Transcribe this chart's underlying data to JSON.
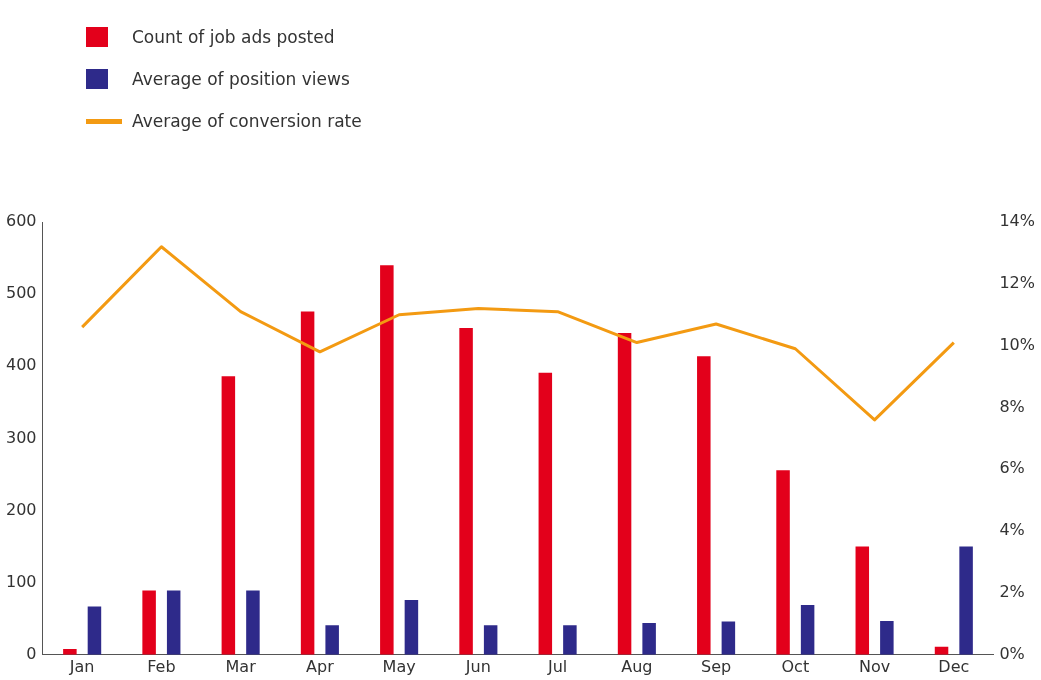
{
  "chart_data": {
    "type": "bar",
    "categories": [
      "Jan",
      "Feb",
      "Mar",
      "Apr",
      "May",
      "Jun",
      "Jul",
      "Aug",
      "Sep",
      "Oct",
      "Nov",
      "Dec"
    ],
    "series": [
      {
        "name": "Count of job ads posted",
        "color": "#e3001b",
        "values": [
          8,
          89,
          386,
          476,
          540,
          453,
          391,
          446,
          414,
          256,
          150,
          11
        ]
      },
      {
        "name": "Average of position views",
        "color": "#2e2a8a",
        "values": [
          67,
          89,
          89,
          41,
          76,
          41,
          41,
          44,
          46,
          69,
          47,
          150
        ]
      },
      {
        "name": "Average of conversion rate",
        "color": "#f39a12",
        "type": "line",
        "axis": "y2",
        "values": [
          10.6,
          13.2,
          11.1,
          9.8,
          11.0,
          11.2,
          11.1,
          10.1,
          10.7,
          9.9,
          7.6,
          10.1
        ]
      }
    ],
    "ylim": [
      0,
      600
    ],
    "yticks": [
      0,
      100,
      200,
      300,
      400,
      500,
      600
    ],
    "y2lim": [
      0,
      14
    ],
    "y2ticks": [
      {
        "value": 0,
        "label": "0%"
      },
      {
        "value": 2,
        "label": "2%"
      },
      {
        "value": 4,
        "label": "4%"
      },
      {
        "value": 6,
        "label": "6%"
      },
      {
        "value": 8,
        "label": "8%"
      },
      {
        "value": 10,
        "label": "10%"
      },
      {
        "value": 12,
        "label": "12%"
      },
      {
        "value": 14,
        "label": "14%"
      }
    ],
    "legend": "top left",
    "grid": false,
    "marker": "none"
  }
}
